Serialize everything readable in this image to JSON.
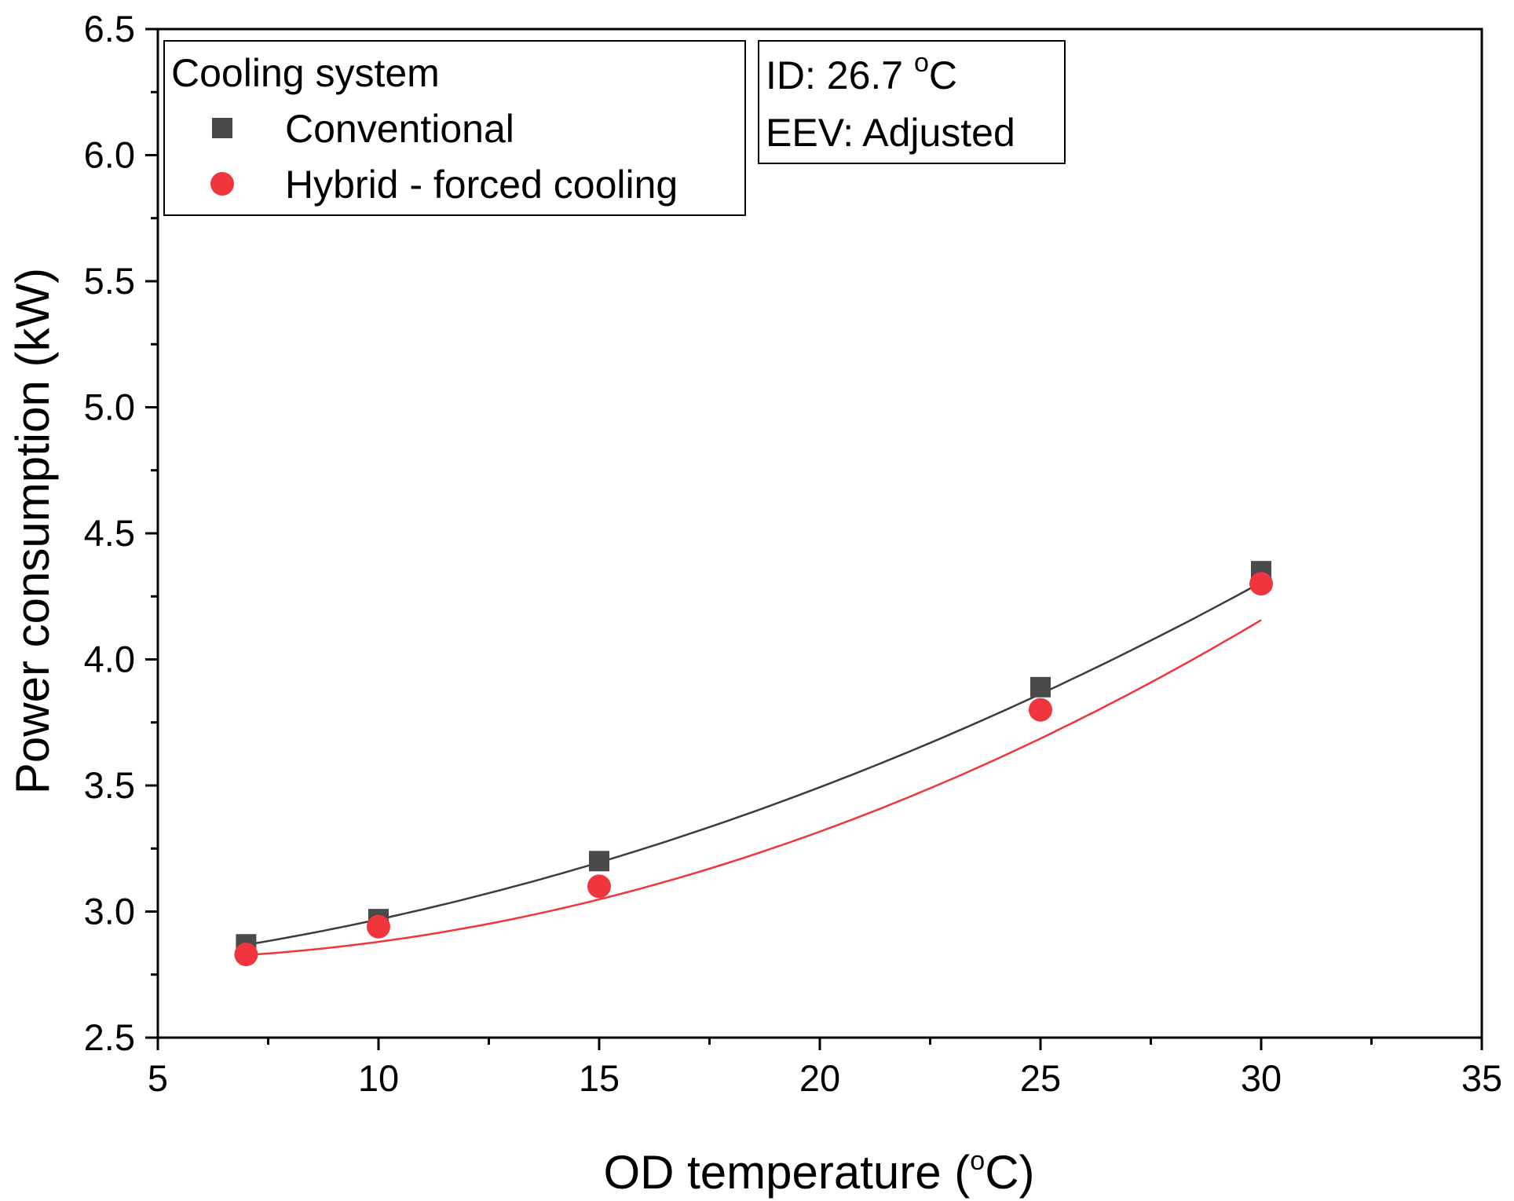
{
  "chart_data": {
    "type": "scatter",
    "title": "",
    "xlabel": "OD temperature (",
    "xlabel_sup": "o",
    "xlabel_tail": "C)",
    "ylabel": "Power consumption (kW)",
    "xlim": [
      5,
      35
    ],
    "ylim": [
      2.5,
      6.5
    ],
    "x_ticks": [
      5,
      10,
      15,
      20,
      25,
      30,
      35
    ],
    "x_tick_labels": [
      "5",
      "10",
      "15",
      "20",
      "25",
      "30",
      "35"
    ],
    "y_ticks": [
      2.5,
      3.0,
      3.5,
      4.0,
      4.5,
      5.0,
      5.5,
      6.0,
      6.5
    ],
    "y_tick_labels": [
      "2.5",
      "3.0",
      "3.5",
      "4.0",
      "4.5",
      "5.0",
      "5.5",
      "6.0",
      "6.5"
    ],
    "grid": false,
    "legend": {
      "title": "Cooling system",
      "placement": "top-left"
    },
    "series": [
      {
        "name": "Conventional",
        "marker": "square",
        "color": "#4a4a4a",
        "line_color": "#3c3c3c",
        "x": [
          7,
          10,
          15,
          25,
          30
        ],
        "y": [
          2.87,
          2.97,
          3.2,
          3.89,
          4.35
        ],
        "fit": [
          0.00144,
          0.0092,
          2.733
        ]
      },
      {
        "name": "Hybrid - forced cooling",
        "marker": "circle",
        "color": "#f0363c",
        "line_color": "#f0363c",
        "x": [
          7,
          10,
          15,
          25,
          30
        ],
        "y": [
          2.83,
          2.94,
          3.1,
          3.8,
          4.3
        ],
        "fit": [
          0.00201,
          -0.0166,
          2.845
        ]
      }
    ],
    "annotations": [
      {
        "line1_prefix": "ID: 26.7 ",
        "line1_sup": "o",
        "line1_suffix": "C",
        "line2": "EEV: Adjusted",
        "placement": "top-center"
      }
    ]
  }
}
